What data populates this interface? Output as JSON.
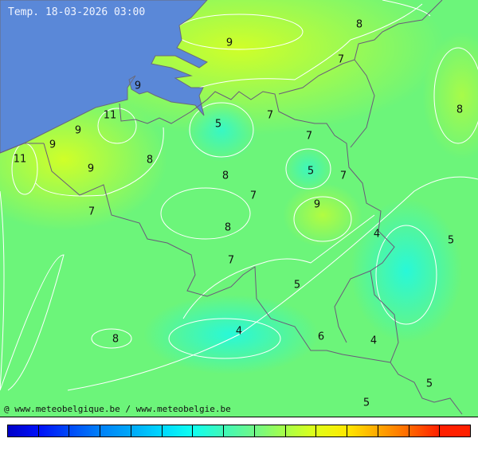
{
  "title": "Temp. 18-03-2026 03:00",
  "credit": "@ www.meteobelgique.be / www.meteobelgie.be",
  "colors": {
    "sea": "#5a88d8",
    "base": "#6cf57a",
    "warm": "#d0ff28",
    "cool": "#30f8c8",
    "border": "#6a5a7a",
    "isoline": "#ffffff"
  },
  "labels": [
    "9",
    "8",
    "7",
    "9",
    "11",
    "5",
    "7",
    "8",
    "9",
    "9",
    "7",
    "11",
    "9",
    "8",
    "5",
    "7",
    "8",
    "7",
    "9",
    "7",
    "8",
    "4",
    "5",
    "7",
    "5",
    "4",
    "6",
    "4",
    "8",
    "5",
    "5"
  ],
  "colorbar": [
    "#0000c8",
    "#0010f8",
    "#0048f8",
    "#0080f8",
    "#00a8f8",
    "#00d8ff",
    "#10fff0",
    "#40f8b8",
    "#70f888",
    "#a8ff48",
    "#e0ff18",
    "#ffe800",
    "#ffa800",
    "#ff6800",
    "#ff2000"
  ]
}
